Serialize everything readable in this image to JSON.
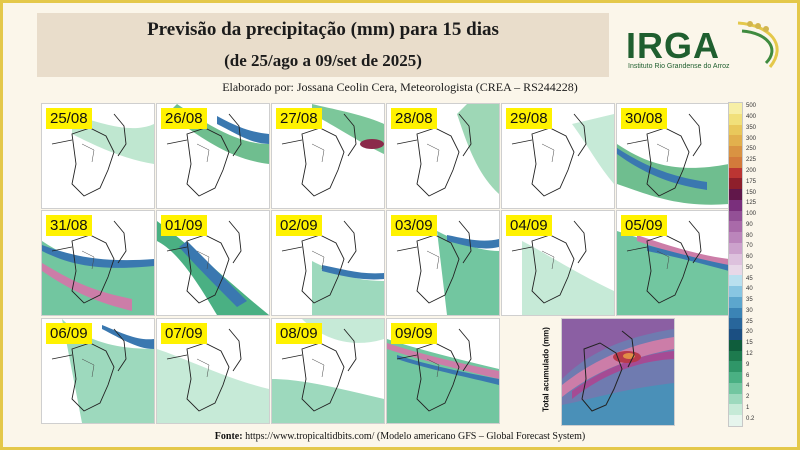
{
  "header": {
    "title": "Previsão da precipitação (mm) para 15 dias",
    "subtitle": "(de 25/ago a 09/set de 2025)",
    "credit": "Elaborado por: Jossana Ceolin Cera, Meteorologista (CREA – RS244228)"
  },
  "logo": {
    "name": "IRGA",
    "subtitle": "Instituto Rio Grandense do Arroz"
  },
  "maps": [
    {
      "date": "25/08"
    },
    {
      "date": "26/08"
    },
    {
      "date": "27/08"
    },
    {
      "date": "28/08"
    },
    {
      "date": "29/08"
    },
    {
      "date": "30/08"
    },
    {
      "date": "31/08"
    },
    {
      "date": "01/09"
    },
    {
      "date": "02/09"
    },
    {
      "date": "03/09"
    },
    {
      "date": "04/09"
    },
    {
      "date": "05/09"
    },
    {
      "date": "06/09"
    },
    {
      "date": "07/09"
    },
    {
      "date": "08/09"
    },
    {
      "date": "09/09"
    }
  ],
  "total": {
    "label": "Total acumulado (mm)"
  },
  "scale": {
    "labels": [
      "500",
      "400",
      "350",
      "300",
      "250",
      "225",
      "200",
      "175",
      "150",
      "125",
      "100",
      "90",
      "80",
      "70",
      "60",
      "50",
      "45",
      "40",
      "35",
      "30",
      "25",
      "20",
      "15",
      "12",
      "9",
      "6",
      "4",
      "2",
      "1",
      "0.2"
    ],
    "colors": [
      "#f7efa6",
      "#f1e07a",
      "#e9c85b",
      "#e2b04d",
      "#d99342",
      "#d37a3b",
      "#bb3532",
      "#8e1f2b",
      "#61174a",
      "#7a2f7c",
      "#935096",
      "#a96aa9",
      "#bb85bb",
      "#cca2cc",
      "#ddc1dd",
      "#e8d8e8",
      "#b9e0ef",
      "#88c6e2",
      "#5ca6cd",
      "#3b84b5",
      "#28669b",
      "#1b4f82",
      "#0f5d3c",
      "#1d7a4e",
      "#2f9668",
      "#4ab083",
      "#72c6a0",
      "#9dd9bd",
      "#c6ead7",
      "#e6f5ed"
    ]
  },
  "footer": {
    "label": "Fonte:",
    "text": "https://www.tropicaltidbits.com/ (Modelo americano GFS – Global Forecast System)"
  }
}
